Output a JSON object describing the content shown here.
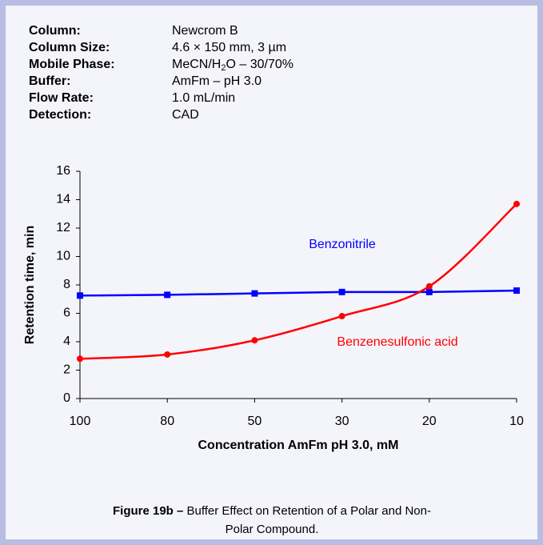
{
  "info": [
    {
      "label": "Column:",
      "value": "Newcrom B"
    },
    {
      "label": "Column Size:",
      "value": "4.6 × 150 mm, 3 µm"
    },
    {
      "label": "Mobile Phase:",
      "value_parts": [
        "MeCN/H",
        "2",
        "O – 30/70%"
      ]
    },
    {
      "label": "Buffer:",
      "value": "AmFm – pH 3.0"
    },
    {
      "label": "Flow Rate:",
      "value": "1.0 mL/min"
    },
    {
      "label": "Detection:",
      "value": "CAD"
    }
  ],
  "chart_data": {
    "type": "line",
    "x_label": "Concentration AmFm pH 3.0, mM",
    "y_label": "Retention time, min",
    "categories": [
      "100",
      "80",
      "50",
      "30",
      "20",
      "10"
    ],
    "series": [
      {
        "name": "Benzonitrile",
        "color": "#0000ff",
        "marker": "square",
        "smooth": false,
        "values": [
          7.25,
          7.3,
          7.4,
          7.5,
          7.5,
          7.6
        ]
      },
      {
        "name": "Benzenesulfonic acid",
        "color": "#ff0000",
        "marker": "circle",
        "smooth": true,
        "values": [
          2.8,
          3.1,
          4.1,
          5.8,
          7.9,
          13.7
        ]
      }
    ],
    "ylim": [
      0,
      16
    ],
    "yticks": [
      0,
      2,
      4,
      6,
      8,
      10,
      12,
      14,
      16
    ],
    "grid": false
  },
  "caption": {
    "label": "Figure 19b –",
    "text": "Buffer Effect on Retention of a Polar and Non-Polar Compound."
  }
}
